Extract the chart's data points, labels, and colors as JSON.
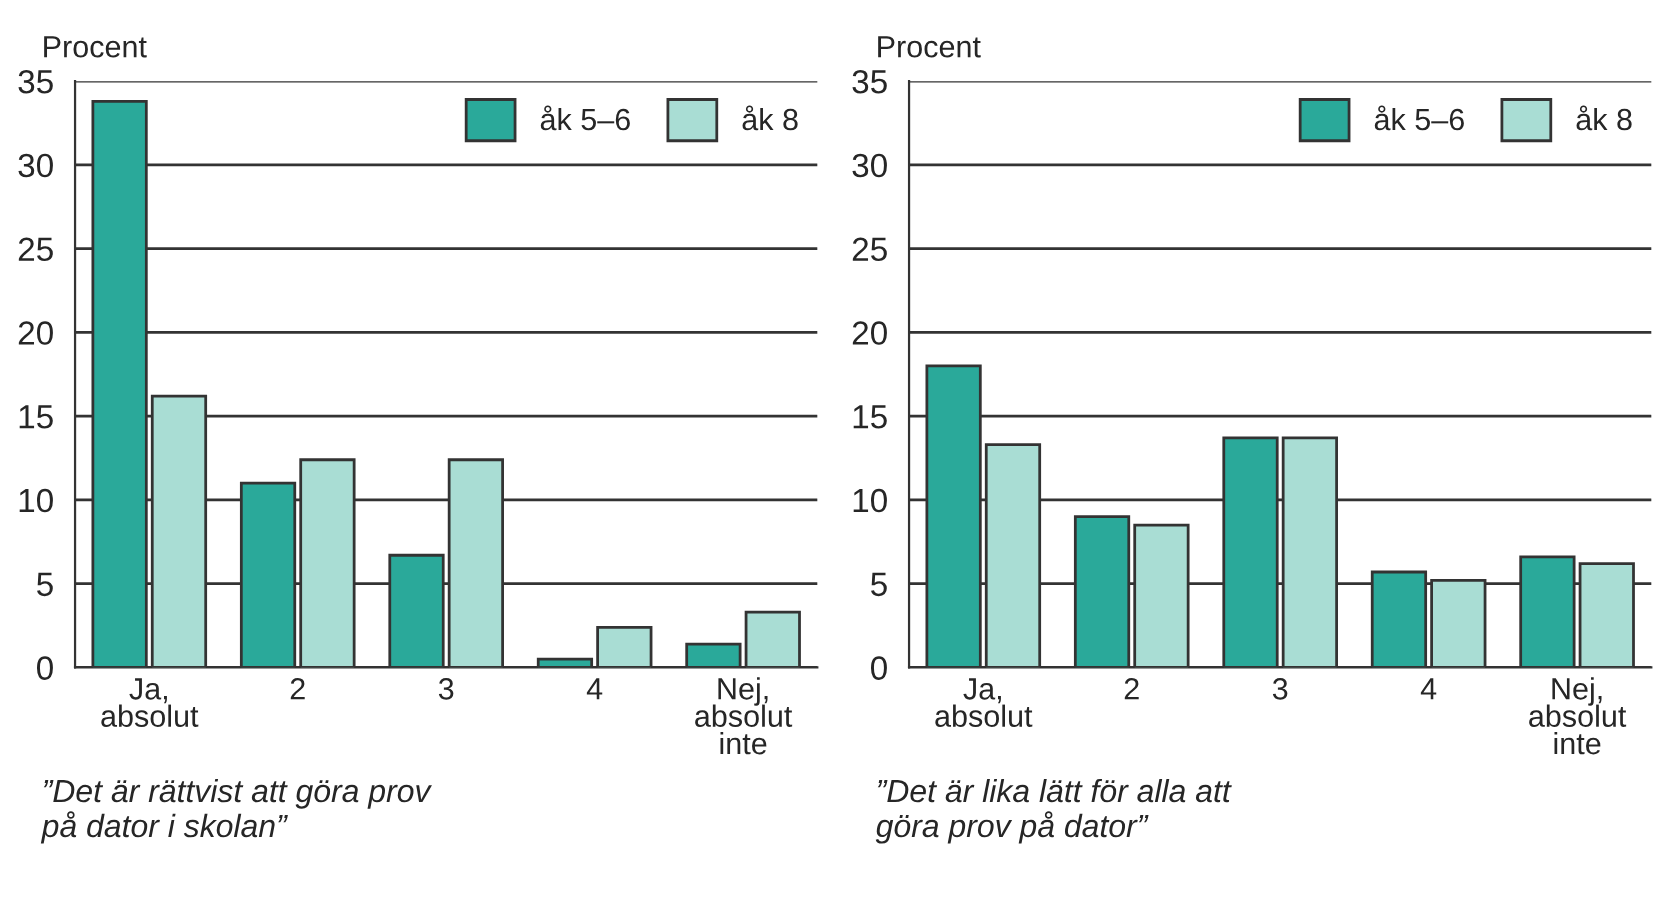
{
  "chart_data": [
    {
      "type": "bar",
      "ylabel": "Procent",
      "categories": [
        "Ja,\nabsolut",
        "2",
        "3",
        "4",
        "Nej,\nabsolut\ninte"
      ],
      "series": [
        {
          "name": "åk 5–6",
          "color": "#2aa99a",
          "values": [
            33.8,
            11,
            6.7,
            0.5,
            1.4
          ]
        },
        {
          "name": "åk 8",
          "color": "#a9ddd4",
          "values": [
            16.2,
            12.4,
            12.4,
            2.4,
            3.3
          ]
        }
      ],
      "ylim": [
        0,
        35
      ],
      "yticks": [
        0,
        5,
        10,
        15,
        20,
        25,
        30,
        35
      ],
      "grid": "y",
      "legend": "top right",
      "annotations": [
        "”Det är rättvist att göra prov\npå dator i skolan”"
      ]
    },
    {
      "type": "bar",
      "ylabel": "Procent",
      "categories": [
        "Ja,\nabsolut",
        "2",
        "3",
        "4",
        "Nej,\nabsolut\ninte"
      ],
      "series": [
        {
          "name": "åk 5–6",
          "color": "#2aa99a",
          "values": [
            18,
            9,
            13.7,
            5.7,
            6.6
          ]
        },
        {
          "name": "åk 8",
          "color": "#a9ddd4",
          "values": [
            13.3,
            8.5,
            13.7,
            5.2,
            6.2
          ]
        }
      ],
      "ylim": [
        0,
        35
      ],
      "yticks": [
        0,
        5,
        10,
        15,
        20,
        25,
        30,
        35
      ],
      "grid": "y",
      "legend": "top right",
      "annotations": [
        "”Det är lika lätt för alla att\ngöra prov på dator”"
      ]
    }
  ]
}
